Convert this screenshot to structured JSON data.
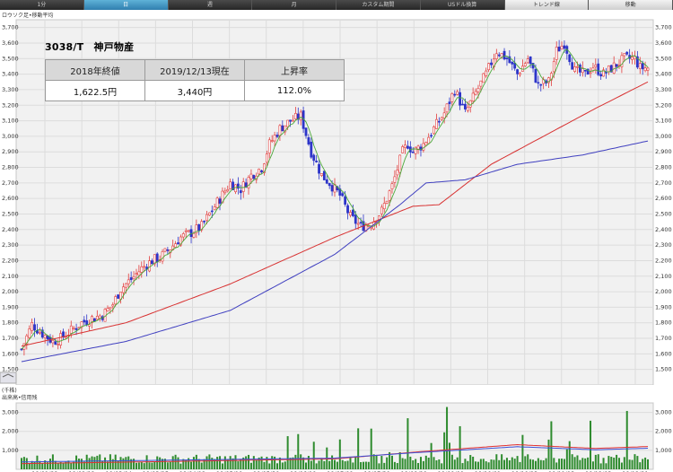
{
  "toolbar": {
    "tabs": [
      "1分",
      "日",
      "週",
      "月",
      "カスタム期間",
      "USドル換算",
      "トレンド線",
      "移動"
    ],
    "active": 1
  },
  "title": "3038/T　神戸物産",
  "info_table": {
    "headers": [
      "2018年終値",
      "2019/12/13現在",
      "上昇率"
    ],
    "values": [
      "1,622.5円",
      "3,440円",
      "112.0%"
    ]
  },
  "upper_label": "ロウソク足•移動平均",
  "lower_label": "出来高•信用残",
  "lower_unit": "(千株)",
  "colors": {
    "up": "#e23b3b",
    "down": "#2d34c9",
    "ma_short": "#4aa83a",
    "ma_mid": "#d83232",
    "ma_long": "#4040c0",
    "volume": "#2e8b2e",
    "credit": "#e03030",
    "credit2": "#3a4fd8"
  },
  "chart_data": [
    {
      "type": "line",
      "title": "",
      "ylim": [
        1400,
        3750
      ],
      "y_ticks": [
        1500,
        1600,
        1700,
        1800,
        1900,
        2000,
        2100,
        2200,
        2300,
        2400,
        2500,
        2600,
        2700,
        2800,
        2900,
        3000,
        3100,
        3200,
        3300,
        3400,
        3500,
        3600,
        3700
      ],
      "y_tick_labels": [
        "1,500",
        "1,600",
        "1,700",
        "1,800",
        "1,900",
        "2,000",
        "2,100",
        "2,200",
        "2,300",
        "2,400",
        "2,500",
        "2,600",
        "2,700",
        "2,800",
        "2,900",
        "3,000",
        "3,100",
        "3,200",
        "3,300",
        "3,400",
        "3,500",
        "3,600",
        "3,700"
      ],
      "x_ticks": [
        "19/01/22",
        "19/02/12",
        "19/03/04",
        "19/03/25",
        "19/04/12",
        "19/05/10",
        "19/05/30",
        "19/06/19",
        "19/07/09",
        "19/07/30",
        "19/08/20",
        "19/09/09",
        "19/10/01",
        "19/10/23",
        "19/11/13",
        "19/12/03",
        "19/12/21"
      ],
      "series": [
        {
          "x": [
            0,
            4,
            8,
            12,
            15,
            19,
            23,
            27,
            31,
            35,
            38,
            42,
            46,
            50,
            53,
            57,
            61,
            65,
            69,
            72,
            76,
            80,
            84,
            88,
            92,
            95,
            99,
            103,
            107,
            111,
            115,
            118,
            122,
            126,
            130,
            134,
            138,
            142,
            146,
            148,
            150,
            154,
            158,
            162,
            166,
            170,
            174,
            178,
            182,
            186,
            190,
            194,
            198,
            202,
            205,
            208,
            212,
            216,
            219,
            223,
            227,
            231,
            235,
            237,
            238,
            240
          ],
          "values": [
            1630,
            1790,
            1730,
            1680,
            1700,
            1750,
            1800,
            1830,
            1850,
            1920,
            2020,
            2080,
            2150,
            2200,
            2220,
            2280,
            2350,
            2380,
            2420,
            2500,
            2600,
            2700,
            2660,
            2750,
            2800,
            2950,
            3050,
            3100,
            3130,
            2900,
            2750,
            2700,
            2620,
            2480,
            2420,
            2440,
            2520,
            2680,
            2900,
            2950,
            2900,
            2950,
            3050,
            3150,
            3300,
            3150,
            3280,
            3400,
            3550,
            3500,
            3400,
            3500,
            3330,
            3350,
            3550,
            3600,
            3420,
            3400,
            3450,
            3400,
            3450,
            3500,
            3500,
            3440,
            3440,
            3440
          ]
        },
        {
          "x": [
            0,
            40,
            80,
            120,
            150,
            160,
            180,
            200,
            220,
            240
          ],
          "values": [
            1650,
            1800,
            2050,
            2350,
            2550,
            2560,
            2820,
            3000,
            3180,
            3350
          ]
        },
        {
          "x": [
            0,
            40,
            80,
            120,
            145,
            155,
            170,
            190,
            215,
            240
          ],
          "values": [
            1550,
            1680,
            1880,
            2240,
            2560,
            2700,
            2720,
            2820,
            2880,
            2970
          ]
        }
      ]
    },
    {
      "type": "bar",
      "ylim": [
        0,
        3500
      ],
      "y_ticks": [
        1000,
        2000,
        3000
      ],
      "y_tick_labels": [
        "1,000",
        "2,000",
        "3,000"
      ],
      "x_ticks": [
        "19/01/22",
        "19/02/12",
        "19/03/04",
        "19/03/25",
        "19/04/12",
        "19/05/10",
        "19/05/30",
        "19/06/19",
        "19/07/09",
        "19/07/30",
        "19/08/20",
        "19/09/09",
        "19/10/01",
        "19/10/23",
        "19/11/13",
        "19/12/03",
        "19/12/21"
      ],
      "series": [
        {
          "x": [
            0,
            60,
            120,
            150,
            190,
            220,
            240
          ],
          "values": [
            300,
            420,
            550,
            900,
            1300,
            1100,
            1200
          ]
        }
      ]
    }
  ]
}
